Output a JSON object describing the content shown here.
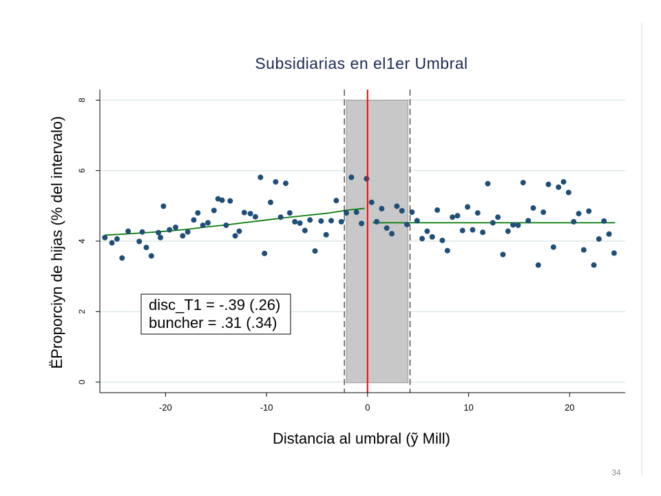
{
  "page_number": "34",
  "chart_data": {
    "type": "scatter",
    "title": "Subsidiarias en el1er Umbral",
    "xlabel": "Distancia al umbral (ỹ Mill)",
    "ylabel": "ËProporciуn de hijas (% del intervalo)",
    "xlim": [
      -26.5,
      25.5
    ],
    "ylim": [
      -0.3,
      8.3
    ],
    "x_ticks": [
      -20,
      -10,
      0,
      10,
      20
    ],
    "x_tick_labels": [
      "-20",
      "-10",
      "0",
      "10",
      "20"
    ],
    "y_ticks": [
      0,
      2,
      4,
      6,
      8
    ],
    "y_tick_labels": [
      "0",
      "2",
      "4",
      "6",
      "8"
    ],
    "grid": true,
    "colors": {
      "points": "#1f4e79",
      "fit_line": "#0a7a0a",
      "cutoff_line": "#ff0000",
      "band_fill": "#c8c8c8",
      "grid": "#dce9e6",
      "title": "#1a2a55"
    },
    "cutoff_x": 0,
    "dashed_lines_x": [
      -2.3,
      4.2
    ],
    "shaded_band": [
      -2.1,
      4.0
    ],
    "annotation_lines": [
      "disc_T1 = -.39 (.26)",
      "buncher = .31 (.34)"
    ],
    "fit_left": {
      "x": [
        -26,
        -24,
        -22,
        -20,
        -18,
        -16,
        -14,
        -12,
        -10,
        -8,
        -6,
        -4,
        -2,
        -0.3
      ],
      "y": [
        4.17,
        4.2,
        4.24,
        4.28,
        4.33,
        4.4,
        4.46,
        4.53,
        4.6,
        4.67,
        4.73,
        4.79,
        4.88,
        4.93
      ]
    },
    "fit_right": {
      "x": [
        0.5,
        24.5
      ],
      "y": [
        4.52,
        4.52
      ]
    },
    "points": {
      "x": [
        -26,
        -25.3,
        -24.8,
        -24.3,
        -23.7,
        -22.6,
        -22.3,
        -21.9,
        -21.4,
        -20.7,
        -20.5,
        -20.2,
        -19.6,
        -19,
        -18.3,
        -17.8,
        -17.2,
        -16.8,
        -16.3,
        -15.8,
        -15.2,
        -14.8,
        -14.4,
        -14,
        -13.6,
        -13.1,
        -12.7,
        -12.2,
        -11.6,
        -11.1,
        -10.6,
        -10.2,
        -9.6,
        -9.1,
        -8.6,
        -8.1,
        -7.7,
        -7.2,
        -6.7,
        -6.2,
        -5.7,
        -5.2,
        -4.6,
        -4.1,
        -3.6,
        -3.1,
        -2.6,
        -2.1,
        -1.6,
        -1.1,
        -0.6,
        -0.1,
        0.4,
        0.9,
        1.4,
        1.9,
        2.4,
        2.9,
        3.4,
        3.9,
        4.4,
        4.9,
        5.4,
        5.9,
        6.4,
        6.9,
        7.4,
        7.9,
        8.4,
        8.9,
        9.4,
        9.9,
        10.4,
        10.9,
        11.4,
        11.9,
        12.4,
        12.9,
        13.4,
        13.9,
        14.4,
        14.9,
        15.4,
        15.9,
        16.4,
        16.9,
        17.4,
        17.9,
        18.4,
        18.9,
        19.4,
        19.9,
        20.4,
        20.9,
        21.4,
        21.9,
        22.4,
        22.9,
        23.4,
        23.9,
        24.4
      ],
      "y": [
        4.1,
        3.95,
        4.06,
        3.52,
        4.28,
        3.99,
        4.26,
        3.82,
        3.58,
        4.24,
        4.1,
        4.99,
        4.32,
        4.39,
        4.15,
        4.26,
        4.6,
        4.8,
        4.45,
        4.52,
        4.87,
        5.2,
        5.16,
        4.45,
        5.14,
        4.15,
        4.28,
        4.81,
        4.78,
        4.69,
        5.81,
        3.65,
        5.1,
        5.68,
        4.68,
        5.64,
        4.8,
        4.55,
        4.51,
        4.3,
        4.6,
        3.72,
        4.57,
        4.18,
        4.58,
        5.15,
        4.55,
        4.8,
        5.81,
        4.82,
        4.5,
        5.77,
        5.1,
        4.55,
        4.92,
        4.37,
        4.21,
        4.99,
        4.86,
        4.47,
        4.82,
        4.58,
        4.07,
        4.28,
        4.12,
        4.88,
        4.02,
        3.73,
        4.68,
        4.72,
        4.3,
        4.97,
        4.32,
        4.8,
        4.25,
        5.63,
        4.52,
        4.68,
        3.62,
        4.28,
        4.46,
        4.45,
        5.66,
        4.58,
        4.94,
        3.32,
        4.82,
        5.61,
        3.83,
        5.53,
        5.68,
        5.38,
        4.55,
        4.78,
        3.75,
        4.85,
        3.32,
        4.06,
        4.57,
        4.2,
        3.66
      ]
    }
  }
}
